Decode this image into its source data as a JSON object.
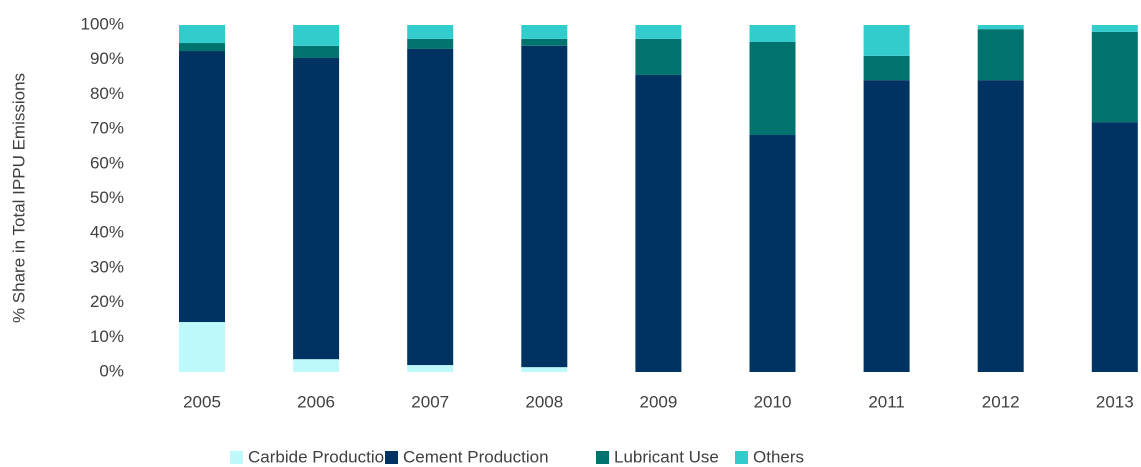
{
  "chart_data": {
    "type": "stacked_bar",
    "y_label": "% Share in Total IPPU Emissions",
    "categories": [
      "2005",
      "2006",
      "2007",
      "2008",
      "2009",
      "2010",
      "2011",
      "2012",
      "2013"
    ],
    "series": [
      {
        "name": "Carbide Production",
        "color": "#bdf8fa",
        "values": [
          14.4,
          3.7,
          2.0,
          1.4,
          0,
          0,
          0,
          0,
          0
        ]
      },
      {
        "name": "Cement Production",
        "color": "#003262",
        "values": [
          78.1,
          86.8,
          91.1,
          92.6,
          85.6,
          68.3,
          84.1,
          84.1,
          72
        ]
      },
      {
        "name": "Lubricant Use",
        "color": "#00736f",
        "values": [
          2.3,
          3.5,
          2.9,
          2,
          10.4,
          26.8,
          7,
          14.7,
          26
        ]
      },
      {
        "name": "Others",
        "color": "#33cccc",
        "values": [
          5.2,
          6,
          4,
          4,
          4,
          4.9,
          8.9,
          1.2,
          2
        ]
      }
    ],
    "ylim": [
      0,
      100
    ],
    "yticks": [
      {
        "value": 0,
        "label": "0%"
      },
      {
        "value": 10,
        "label": "10%"
      },
      {
        "value": 20,
        "label": "20%"
      },
      {
        "value": 30,
        "label": "30%"
      },
      {
        "value": 40,
        "label": "40%"
      },
      {
        "value": 50,
        "label": "50%"
      },
      {
        "value": 60,
        "label": "60%"
      },
      {
        "value": 70,
        "label": "70%"
      },
      {
        "value": 80,
        "label": "80%"
      },
      {
        "value": 90,
        "label": "90%"
      },
      {
        "value": 100,
        "label": "100%"
      }
    ],
    "legend": "bottom"
  }
}
